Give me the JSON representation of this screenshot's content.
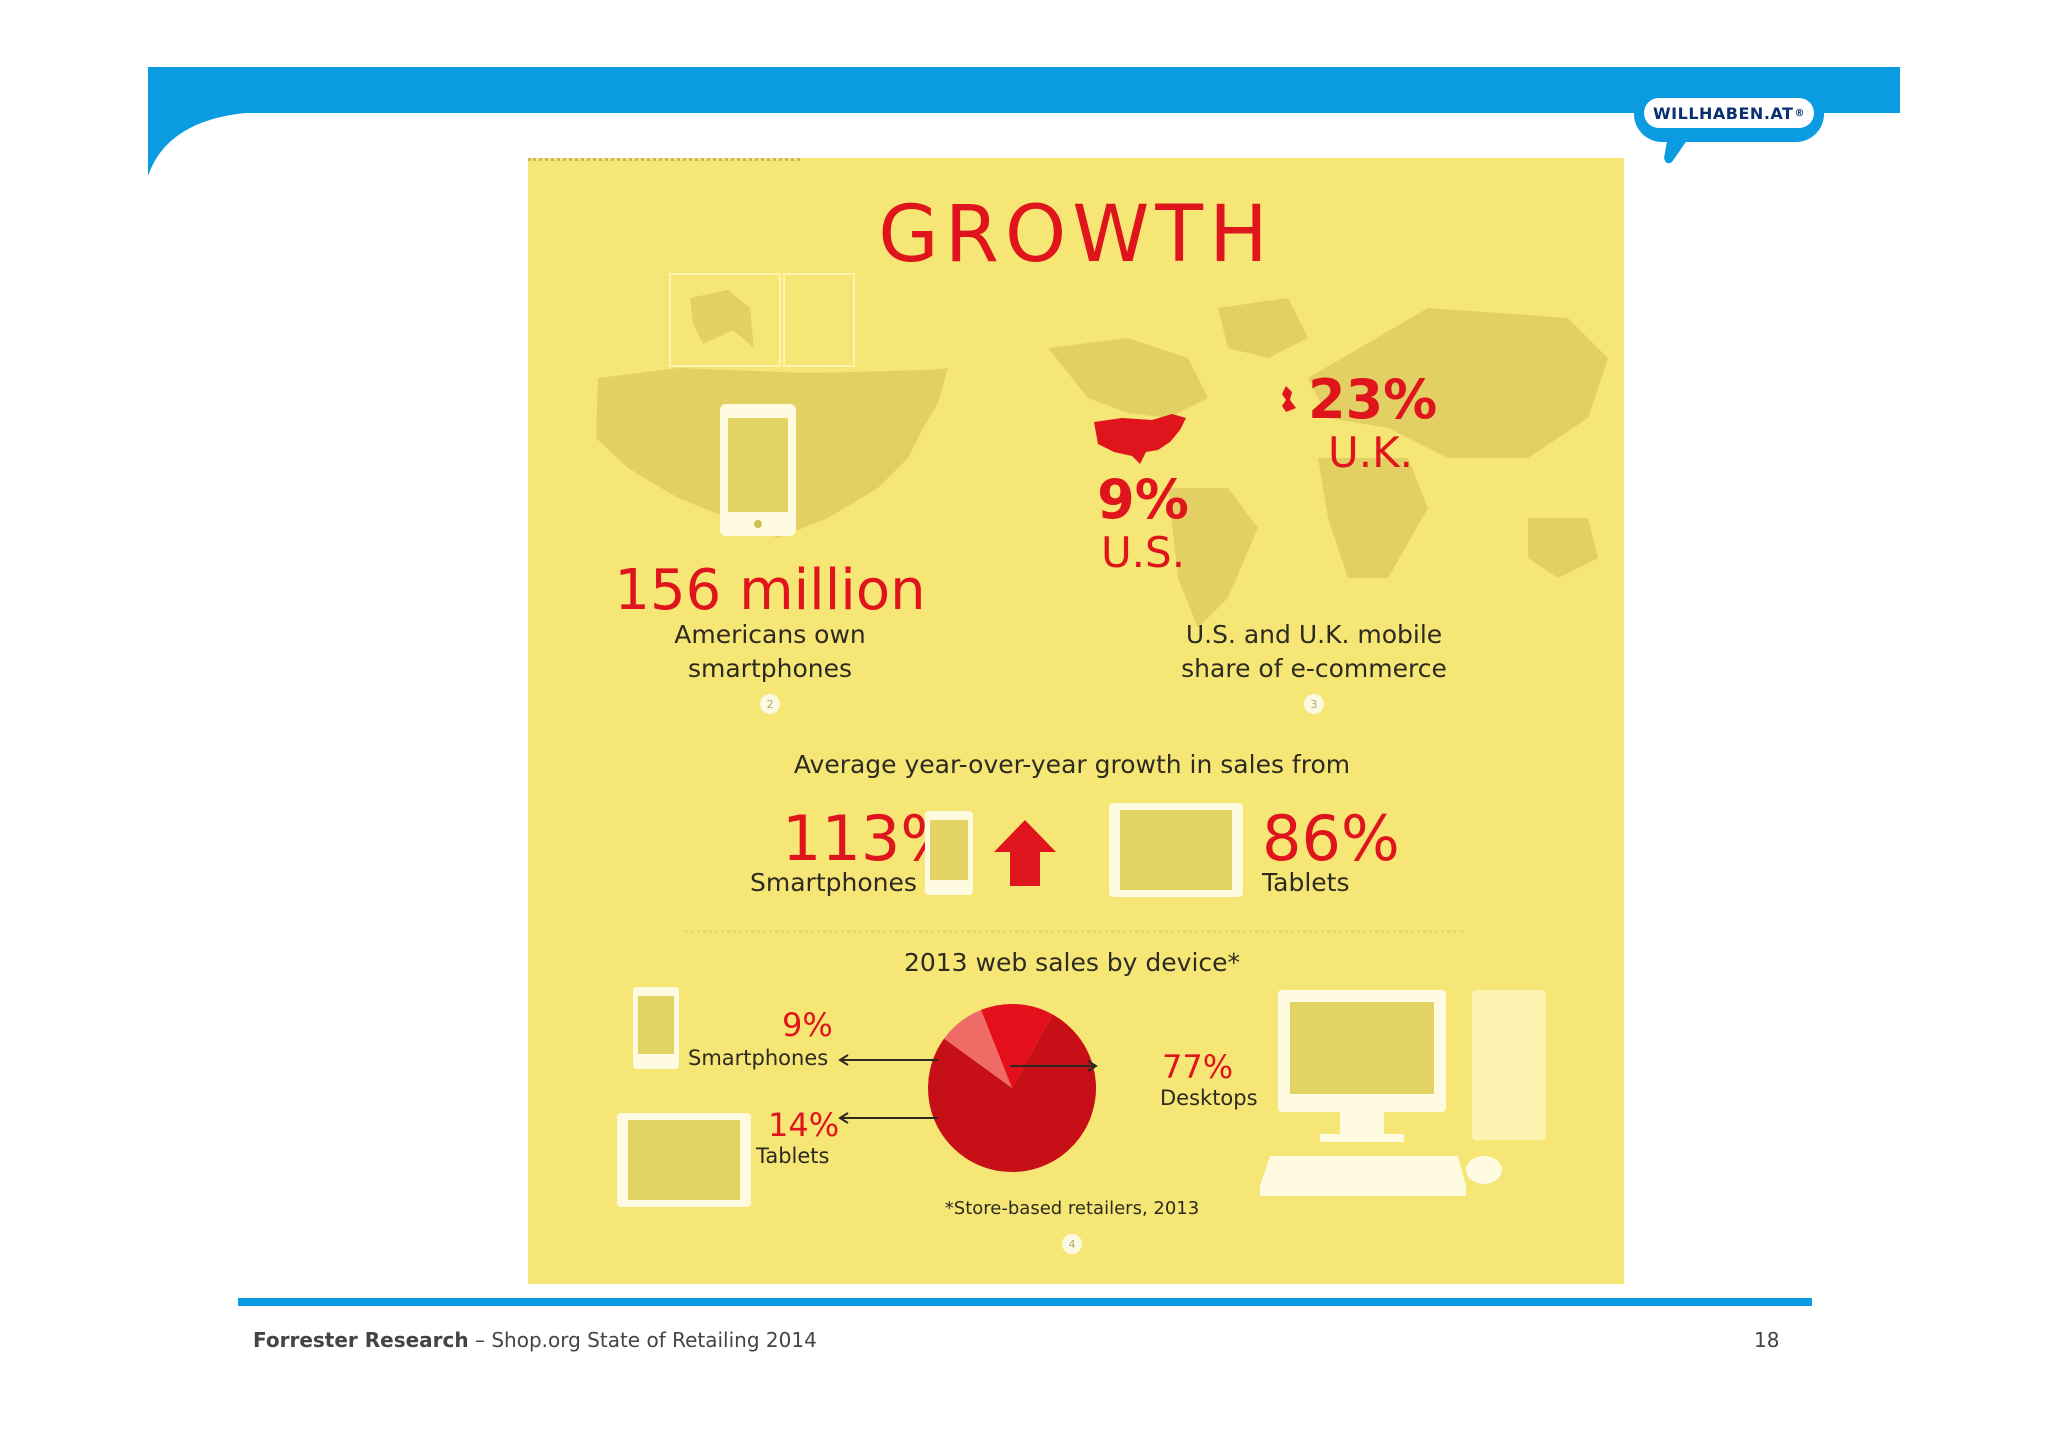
{
  "logo": {
    "text": "WILLHABEN.AT",
    "reg": "®"
  },
  "poster": {
    "title": "GROWTH",
    "smartphone_owners": {
      "value": "156 million",
      "line1": "Americans own",
      "line2": "smartphones",
      "footnote": "2"
    },
    "mobile_share": {
      "us_value": "9%",
      "us_label": "U.S.",
      "uk_value": "23%",
      "uk_label": "U.K.",
      "line1": "U.S. and U.K. mobile",
      "line2": "share of e-commerce",
      "footnote": "3"
    },
    "yoy": {
      "heading": "Average year-over-year growth in sales from",
      "smart_value": "113%",
      "smart_label": "Smartphones",
      "tablet_value": "86%",
      "tablet_label": "Tablets"
    },
    "web_sales": {
      "heading": "2013 web sales by device*",
      "smart_value": "9%",
      "smart_label": "Smartphones",
      "tablet_value": "14%",
      "tablet_label": "Tablets",
      "desktop_value": "77%",
      "desktop_label": "Desktops",
      "note": "*Store-based retailers, 2013",
      "footnote": "4"
    }
  },
  "chart_data": {
    "type": "pie",
    "title": "2013 web sales by device*",
    "categories": [
      "Smartphones",
      "Tablets",
      "Desktops"
    ],
    "values": [
      9,
      14,
      77
    ],
    "colors": [
      "#ee6b66",
      "#e3101b",
      "#c70f17"
    ]
  },
  "colors": {
    "accent_blue": "#0a9be0",
    "poster_bg": "#f6e676",
    "red": "#e0141c"
  },
  "footer": {
    "source": "Forrester Research",
    "separator": " – ",
    "subtitle": "Shop.org State of Retailing 2014",
    "page": "18"
  }
}
